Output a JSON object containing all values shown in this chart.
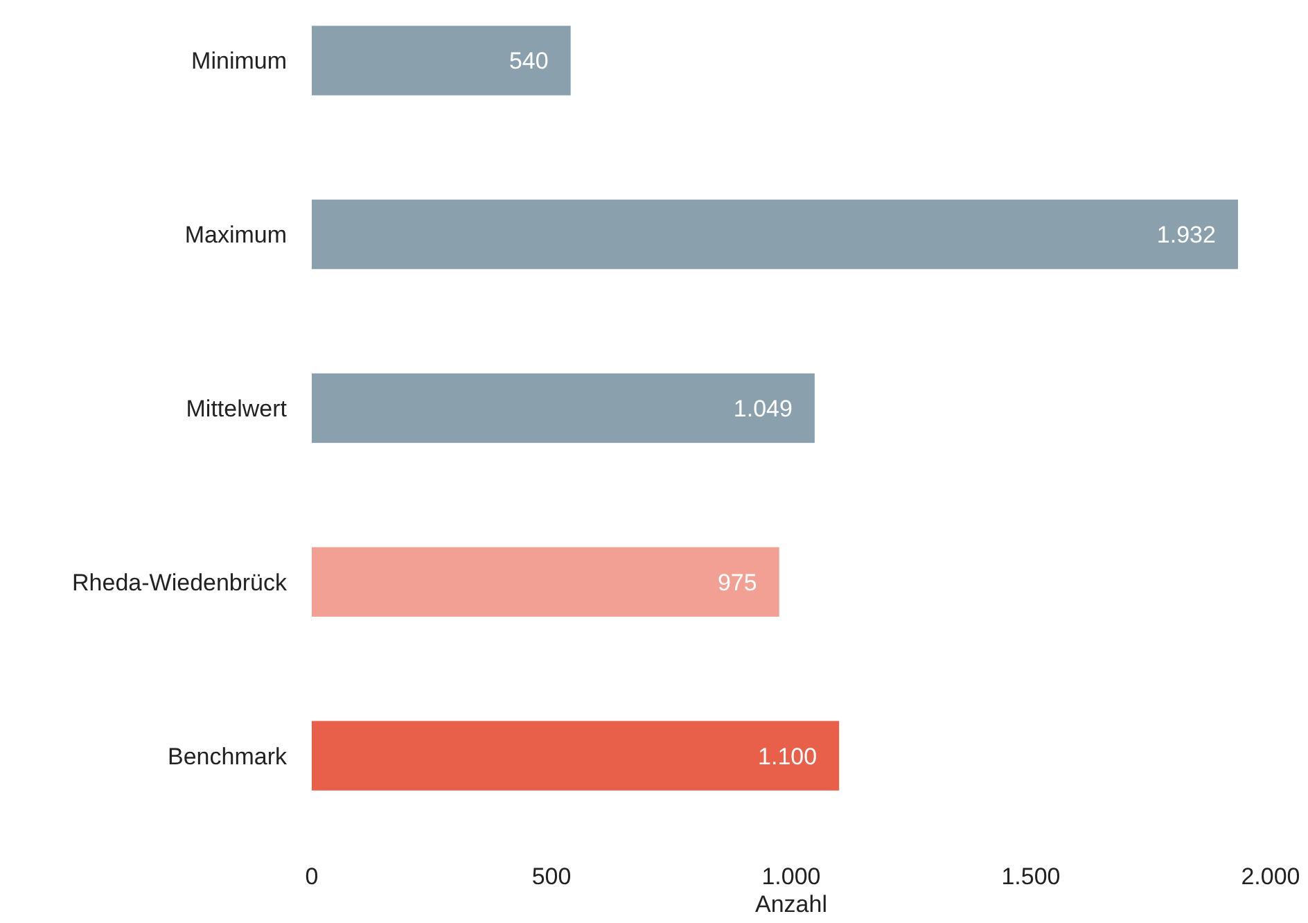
{
  "chart_data": {
    "type": "bar",
    "orientation": "horizontal",
    "xlabel": "Anzahl",
    "categories": [
      "Minimum",
      "Maximum",
      "Mittelwert",
      "Rheda-Wiedenbrück",
      "Benchmark"
    ],
    "values": [
      540,
      1932,
      1049,
      975,
      1100
    ],
    "colors": [
      "#8aa1ad",
      "#8aa1ad",
      "#8aa1ad",
      "#f2a093",
      "#e8604a"
    ],
    "value_labels": [
      "540",
      "1.932",
      "1.049",
      "975",
      "1.100"
    ],
    "xlim": [
      0,
      2000
    ],
    "xticks": [
      0,
      500,
      {
        "value": 1000,
        "label": "1.000"
      },
      {
        "value": 1500,
        "label": "1.500"
      },
      {
        "value": 2000,
        "label": "2.000"
      }
    ],
    "grid": false
  }
}
